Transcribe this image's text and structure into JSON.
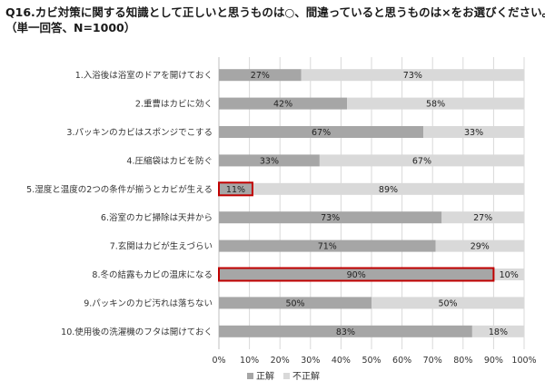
{
  "header": {
    "title_line1": "Q16.カビ対策に関する知識として正しいと思うものは○、間違っていると思うものは×をお選びください。",
    "title_line2": "（単一回答、N=1000）"
  },
  "chart_data": {
    "type": "bar",
    "orientation": "horizontal",
    "stacked": "percent",
    "title": "Q16.カビ対策に関する知識として正しいと思うものは○、間違っていると思うものは×をお選びください。",
    "subtitle": "（単一回答、N=1000）",
    "categories": [
      "1.入浴後は浴室のドアを開けておく",
      "2.重曹はカビに効く",
      "3.パッキンのカビはスポンジでこする",
      "4.圧縮袋はカビを防ぐ",
      "5.湿度と温度の2つの条件が揃うとカビが生える",
      "6.浴室のカビ掃除は天井から",
      "7.玄関はカビが生えづらい",
      "8.冬の結露もカビの温床になる",
      "9.パッキンのカビ汚れは落ちない",
      "10.使用後の洗濯機のフタは開けておく"
    ],
    "series": [
      {
        "name": "正解",
        "color": "#a6a6a6",
        "values": [
          27,
          42,
          67,
          33,
          11,
          73,
          71,
          90,
          50,
          83
        ]
      },
      {
        "name": "不正解",
        "color": "#d9d9d9",
        "values": [
          73,
          58,
          33,
          67,
          89,
          27,
          29,
          10,
          50,
          18
        ]
      }
    ],
    "value_labels_suffix": "%",
    "highlighted_categories": [
      "5.湿度と温度の2つの条件が揃うとカビが生える",
      "8.冬の結露もカビの温床になる"
    ],
    "highlight_color": "#c00000",
    "xlim": [
      0,
      100
    ],
    "xticks": [
      "0%",
      "10%",
      "20%",
      "30%",
      "40%",
      "50%",
      "60%",
      "70%",
      "80%",
      "90%",
      "100%"
    ],
    "grid": "vertical",
    "legend_position": "bottom"
  }
}
